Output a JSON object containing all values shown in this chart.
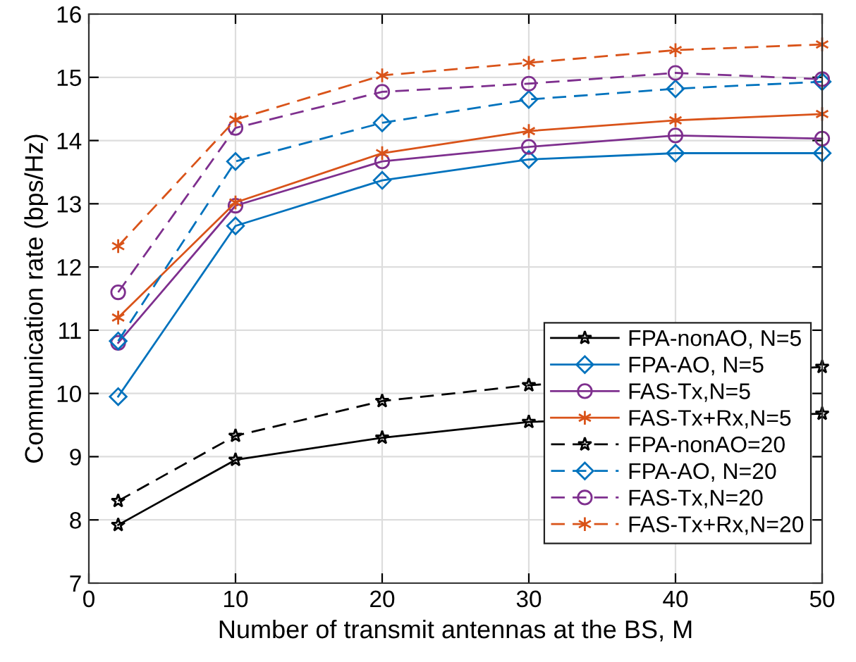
{
  "chart_data": {
    "type": "line",
    "xlabel": "Number of transmit antennas at the BS, M",
    "ylabel": "Communication rate (bps/Hz)",
    "x": [
      2,
      10,
      20,
      30,
      40,
      50
    ],
    "series": [
      {
        "name": "FPA-nonAO, N=5",
        "color": "#000000",
        "marker": "star",
        "line_style": "solid",
        "values": [
          7.92,
          8.95,
          9.3,
          9.55,
          null,
          9.68
        ]
      },
      {
        "name": "FPA-AO, N=5",
        "color": "#0072bd",
        "marker": "diamond",
        "line_style": "solid",
        "values": [
          9.95,
          12.65,
          13.37,
          13.7,
          13.8,
          13.8
        ]
      },
      {
        "name": "FAS-Tx,N=5",
        "color": "#7e2f8e",
        "marker": "circle",
        "line_style": "solid",
        "values": [
          10.8,
          12.97,
          13.67,
          13.9,
          14.08,
          14.03
        ]
      },
      {
        "name": "FAS-Tx+Rx,N=5",
        "color": "#d95319",
        "marker": "cross",
        "line_style": "solid",
        "values": [
          11.2,
          13.02,
          13.8,
          14.15,
          14.32,
          14.42
        ]
      },
      {
        "name": "FPA-nonAO=20",
        "color": "#000000",
        "marker": "star",
        "line_style": "dashed",
        "values": [
          8.3,
          9.33,
          9.88,
          10.13,
          null,
          10.42
        ]
      },
      {
        "name": "FPA-AO, N=20",
        "color": "#0072bd",
        "marker": "diamond",
        "line_style": "dashed",
        "values": [
          10.83,
          13.67,
          14.28,
          14.65,
          14.82,
          14.93
        ]
      },
      {
        "name": "FAS-Tx,N=20",
        "color": "#7e2f8e",
        "marker": "circle",
        "line_style": "dashed",
        "values": [
          11.6,
          14.2,
          14.77,
          14.9,
          15.07,
          14.97
        ]
      },
      {
        "name": "FAS-Tx+Rx,N=20",
        "color": "#d95319",
        "marker": "cross",
        "line_style": "dashed",
        "values": [
          12.33,
          14.33,
          15.03,
          15.23,
          15.43,
          15.52
        ]
      }
    ],
    "xlim": [
      0,
      50
    ],
    "xticks": [
      0,
      10,
      20,
      30,
      40,
      50
    ],
    "ylim": [
      7,
      16
    ],
    "yticks": [
      7,
      8,
      9,
      10,
      11,
      12,
      13,
      14,
      15,
      16
    ],
    "grid": true,
    "legend": "bottom right"
  }
}
